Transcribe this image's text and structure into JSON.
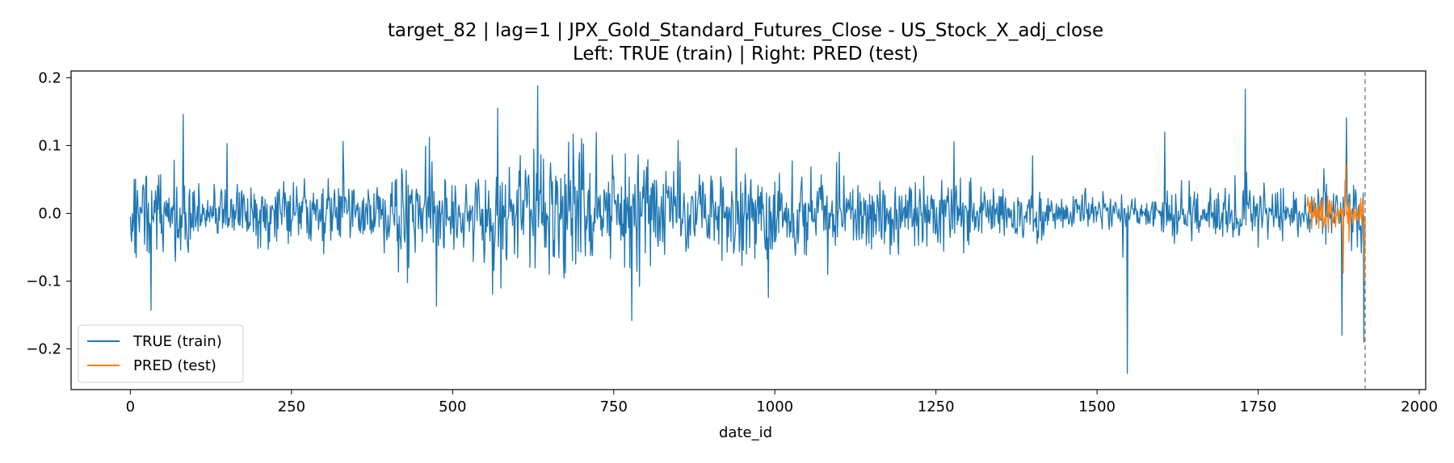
{
  "chart_data": {
    "type": "line",
    "title": "target_82 | lag=1 | JPX_Gold_Standard_Futures_Close - US_Stock_X_adj_close",
    "subtitle": "Left: TRUE (train) | Right: PRED (test)",
    "xlabel": "date_id",
    "ylabel": "",
    "xlim": [
      -92,
      2010
    ],
    "ylim": [
      -0.26,
      0.21
    ],
    "x_ticks": [
      0,
      250,
      500,
      750,
      1000,
      1250,
      1500,
      1750,
      2000
    ],
    "x_tick_labels": [
      "0",
      "250",
      "500",
      "750",
      "1000",
      "1250",
      "1500",
      "1750",
      "2000"
    ],
    "y_ticks": [
      -0.2,
      -0.1,
      0.0,
      0.1,
      0.2
    ],
    "y_tick_labels": [
      "−0.2",
      "−0.1",
      "0.0",
      "0.1",
      "0.2"
    ],
    "grid": false,
    "legend_position": "lower-left",
    "vline": {
      "x": 1916,
      "style": "dashed",
      "color": "#808080"
    },
    "series": [
      {
        "name": "TRUE (train)",
        "color": "#1f77b4",
        "x_start": 0,
        "x_end": 1916,
        "sampled_points": [
          [
            0,
            -0.005
          ],
          [
            10,
            0.01
          ],
          [
            25,
            0.055
          ],
          [
            32,
            -0.143
          ],
          [
            40,
            0.02
          ],
          [
            82,
            0.146
          ],
          [
            150,
            0.103
          ],
          [
            300,
            -0.06
          ],
          [
            330,
            0.106
          ],
          [
            430,
            -0.102
          ],
          [
            458,
            0.099
          ],
          [
            475,
            -0.137
          ],
          [
            570,
            0.155
          ],
          [
            575,
            -0.11
          ],
          [
            632,
            0.188
          ],
          [
            650,
            -0.09
          ],
          [
            700,
            0.11
          ],
          [
            778,
            -0.158
          ],
          [
            850,
            0.108
          ],
          [
            990,
            -0.124
          ],
          [
            1100,
            0.09
          ],
          [
            1400,
            0.085
          ],
          [
            1540,
            -0.065
          ],
          [
            1547,
            -0.236
          ],
          [
            1605,
            0.12
          ],
          [
            1730,
            0.183
          ],
          [
            1750,
            -0.05
          ],
          [
            1880,
            -0.18
          ],
          [
            1887,
            0.141
          ],
          [
            1914,
            -0.19
          ]
        ]
      },
      {
        "name": "PRED (test)",
        "color": "#ff7f0e",
        "x_start": 1826,
        "x_end": 1916,
        "sampled_points": [
          [
            1826,
            0.01
          ],
          [
            1850,
            0.02
          ],
          [
            1870,
            -0.02
          ],
          [
            1882,
            -0.088
          ],
          [
            1886,
            0.074
          ],
          [
            1900,
            -0.01
          ],
          [
            1915,
            -0.1
          ]
        ]
      }
    ]
  }
}
